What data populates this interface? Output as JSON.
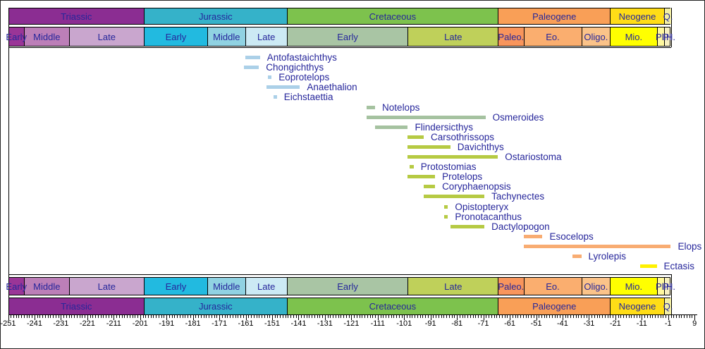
{
  "figure": {
    "kind": "stratigraphic-range-chart",
    "background": "#ffffff",
    "label_color": "#26269B",
    "axis_color": "#000000"
  },
  "chart_data": {
    "type": "bar",
    "orientation": "horizontal-range",
    "xlabel": "",
    "x_axis": {
      "min": -251,
      "max": 9,
      "major_step": 10,
      "minor_step": 1,
      "major_ticks": [
        -251,
        -241,
        -231,
        -221,
        -211,
        -201,
        -191,
        -181,
        -171,
        -161,
        -151,
        -141,
        -131,
        -121,
        -111,
        -101,
        -91,
        -81,
        -71,
        -61,
        -51,
        -41,
        -31,
        -21,
        -11,
        -1,
        9
      ]
    },
    "timescale": {
      "periods": [
        {
          "label": "Triassic",
          "from": -251,
          "to": -199.6,
          "color": "#8B2D92"
        },
        {
          "label": "Jurassic",
          "from": -199.6,
          "to": -145.5,
          "color": "#35B2C9"
        },
        {
          "label": "Cretaceous",
          "from": -145.5,
          "to": -65.5,
          "color": "#7DC24D"
        },
        {
          "label": "Paleogene",
          "from": -65.5,
          "to": -23.03,
          "color": "#F99F57"
        },
        {
          "label": "Neogene",
          "from": -23.03,
          "to": -2.588,
          "color": "#FFDD17"
        },
        {
          "label": "Q.",
          "from": -2.588,
          "to": 0,
          "color": "#F3EFA5"
        }
      ],
      "epochs": [
        {
          "label": "Early",
          "from": -251,
          "to": -245,
          "color": "#9A3597"
        },
        {
          "label": "Middle",
          "from": -245,
          "to": -228,
          "color": "#BC7FB8"
        },
        {
          "label": "Late",
          "from": -228,
          "to": -199.6,
          "color": "#C9A6CE"
        },
        {
          "label": "Early",
          "from": -199.6,
          "to": -175.6,
          "color": "#22BAE0"
        },
        {
          "label": "Middle",
          "from": -175.6,
          "to": -161.2,
          "color": "#90D2E2"
        },
        {
          "label": "Late",
          "from": -161.2,
          "to": -145.5,
          "color": "#CCEAF4"
        },
        {
          "label": "Early",
          "from": -145.5,
          "to": -99.6,
          "color": "#A9C5A4"
        },
        {
          "label": "Late",
          "from": -99.6,
          "to": -65.5,
          "color": "#BFD05A"
        },
        {
          "label": "Paleo.",
          "from": -65.5,
          "to": -55.8,
          "color": "#F8955C"
        },
        {
          "label": "Eo.",
          "from": -55.8,
          "to": -33.9,
          "color": "#FAAE6F"
        },
        {
          "label": "Oligo.",
          "from": -33.9,
          "to": -23.03,
          "color": "#FBC389"
        },
        {
          "label": "Mio.",
          "from": -23.03,
          "to": -5.33,
          "color": "#FFFF00"
        },
        {
          "label": "Pli",
          "from": -5.33,
          "to": -2.588,
          "color": "#FFF89E"
        },
        {
          "label": "Pl",
          "from": -2.588,
          "to": -0.5,
          "color": "#F7F0C0"
        },
        {
          "label": "H.",
          "from": -0.5,
          "to": 0,
          "color": "#FDF6D8"
        }
      ]
    },
    "taxa": [
      {
        "name": "Antofastaichthys",
        "from": -161.2,
        "to": -155.6,
        "color": "#ABD0E8"
      },
      {
        "name": "Chongichthys",
        "from": -161.6,
        "to": -156.0,
        "color": "#ABD0E8"
      },
      {
        "name": "Eoprotelops",
        "from": -152.6,
        "to": -151.2,
        "color": "#ABD0E8"
      },
      {
        "name": "Anaethalion",
        "from": -153.2,
        "to": -140.5,
        "color": "#ABD0E8"
      },
      {
        "name": "Eichstaettia",
        "from": -150.6,
        "to": -149.2,
        "color": "#ABD0E8"
      },
      {
        "name": "Notelops",
        "from": -115.2,
        "to": -112.0,
        "color": "#A5C2A0"
      },
      {
        "name": "Osmeroides",
        "from": -115.2,
        "to": -70.2,
        "color": "#A5C2A0"
      },
      {
        "name": "Flindersicthys",
        "from": -112.0,
        "to": -99.6,
        "color": "#A5C2A0"
      },
      {
        "name": "Carsothrissops",
        "from": -99.6,
        "to": -93.6,
        "color": "#B6CA43"
      },
      {
        "name": "Davichthys",
        "from": -99.6,
        "to": -83.5,
        "color": "#B6CA43"
      },
      {
        "name": "Ostariostoma",
        "from": -99.6,
        "to": -65.5,
        "color": "#B6CA43"
      },
      {
        "name": "Protostomias",
        "from": -98.8,
        "to": -97.4,
        "color": "#B6CA43"
      },
      {
        "name": "Protelops",
        "from": -99.6,
        "to": -89.3,
        "color": "#B6CA43"
      },
      {
        "name": "Coryphaenopsis",
        "from": -93.6,
        "to": -89.3,
        "color": "#B6CA43"
      },
      {
        "name": "Tachynectes",
        "from": -93.6,
        "to": -70.6,
        "color": "#B6CA43"
      },
      {
        "name": "Opistopteryx",
        "from": -85.8,
        "to": -84.4,
        "color": "#B6CA43"
      },
      {
        "name": "Pronotacanthus",
        "from": -85.8,
        "to": -84.4,
        "color": "#B6CA43"
      },
      {
        "name": "Dactylopogon",
        "from": -83.5,
        "to": -70.6,
        "color": "#B6CA43"
      },
      {
        "name": "Esocelops",
        "from": -55.8,
        "to": -48.6,
        "color": "#F8AC72"
      },
      {
        "name": "Elops",
        "from": -55.8,
        "to": 0,
        "color": "#F8AC72"
      },
      {
        "name": "Lyrolepis",
        "from": -37.2,
        "to": -33.9,
        "color": "#F8AC72"
      },
      {
        "name": "Ectasis",
        "from": -11.6,
        "to": -5.33,
        "color": "#FFF100"
      }
    ]
  }
}
